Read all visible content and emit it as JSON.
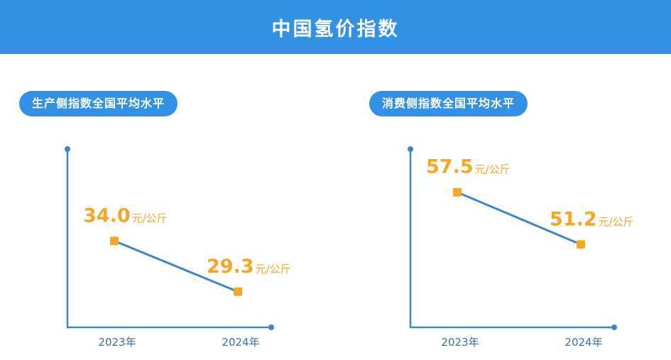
{
  "title": "中国氢价指数",
  "colors": {
    "header": "#3291e4",
    "axis": "#3a86c8",
    "point": "#f5a623",
    "year": "#3b6f9e"
  },
  "chart_data": [
    {
      "type": "line",
      "title": "生产侧指数全国平均水平",
      "categories": [
        "2023年",
        "2024年"
      ],
      "values": [
        34.0,
        29.3
      ],
      "value_labels": [
        "34.0",
        "29.3"
      ],
      "unit": "元/公斤",
      "ylim": [
        26,
        42.5
      ]
    },
    {
      "type": "line",
      "title": "消费侧指数全国平均水平",
      "categories": [
        "2023年",
        "2024年"
      ],
      "values": [
        57.5,
        51.2
      ],
      "value_labels": [
        "57.5",
        "51.2"
      ],
      "unit": "元/公斤",
      "ylim": [
        41.2,
        62.7
      ]
    }
  ]
}
